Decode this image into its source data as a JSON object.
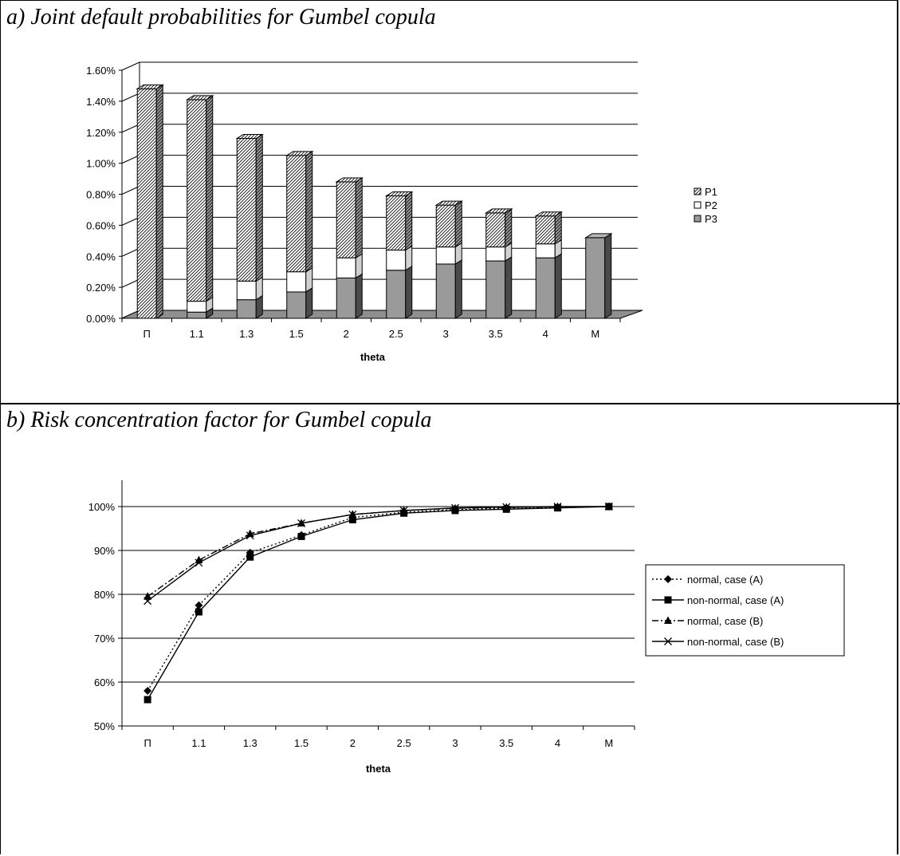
{
  "panels": {
    "a_title": "a) Joint default probabilities for Gumbel copula",
    "b_title": "b) Risk concentration factor for Gumbel copula"
  },
  "chart_data": [
    {
      "type": "bar",
      "stacked": true,
      "three_d": true,
      "categories": [
        "Π",
        "1.1",
        "1.3",
        "1.5",
        "2",
        "2.5",
        "3",
        "3.5",
        "4",
        "M"
      ],
      "xlabel": "theta",
      "ylabel": "",
      "ylim": [
        0,
        0.016
      ],
      "yticks": [
        "0.00%",
        "0.20%",
        "0.40%",
        "0.60%",
        "0.80%",
        "1.00%",
        "1.20%",
        "1.40%",
        "1.60%"
      ],
      "grid": true,
      "legend_position": "right",
      "series": [
        {
          "name": "P3",
          "values": [
            0.0,
            0.0004,
            0.0012,
            0.0017,
            0.0026,
            0.0031,
            0.0035,
            0.0037,
            0.0039,
            0.0052
          ],
          "color": "#999999",
          "pattern": "solid"
        },
        {
          "name": "P2",
          "values": [
            0.0,
            0.0007,
            0.0012,
            0.0013,
            0.0013,
            0.0013,
            0.0011,
            0.0009,
            0.0009,
            0.0
          ],
          "color": "#ffffff",
          "pattern": "solid"
        },
        {
          "name": "P1",
          "values": [
            0.0148,
            0.013,
            0.0092,
            0.0075,
            0.0049,
            0.0035,
            0.0027,
            0.0022,
            0.0018,
            0.0
          ],
          "color": "#ffffff",
          "pattern": "hatch"
        }
      ],
      "legend_order": [
        "P1",
        "P2",
        "P3"
      ]
    },
    {
      "type": "line",
      "categories": [
        "Π",
        "1.1",
        "1.3",
        "1.5",
        "2",
        "2.5",
        "3",
        "3.5",
        "4",
        "M"
      ],
      "xlabel": "theta",
      "ylabel": "",
      "ylim": [
        50,
        100
      ],
      "yticks": [
        "50%",
        "60%",
        "70%",
        "80%",
        "90%",
        "100%"
      ],
      "grid": true,
      "legend_position": "right",
      "series": [
        {
          "name": "normal, case (A)",
          "values": [
            58,
            77.5,
            89.5,
            93.5,
            97.5,
            98.7,
            99.3,
            99.6,
            99.9,
            100
          ],
          "marker": "diamond",
          "dash": "dotted"
        },
        {
          "name": "non-normal, case (A)",
          "values": [
            56,
            76,
            88.5,
            93.2,
            97,
            98.5,
            99.1,
            99.4,
            99.7,
            100
          ],
          "marker": "square",
          "dash": "solid"
        },
        {
          "name": "normal, case (B)",
          "values": [
            79.5,
            87.8,
            93.8,
            96.2,
            98.2,
            99.1,
            99.6,
            99.8,
            99.95,
            100
          ],
          "marker": "triangle",
          "dash": "dashdot"
        },
        {
          "name": "non-normal, case (B)",
          "values": [
            78.5,
            87.2,
            93.4,
            96.2,
            98.2,
            99.1,
            99.7,
            99.9,
            100,
            100
          ],
          "marker": "x",
          "dash": "solid"
        }
      ]
    }
  ]
}
